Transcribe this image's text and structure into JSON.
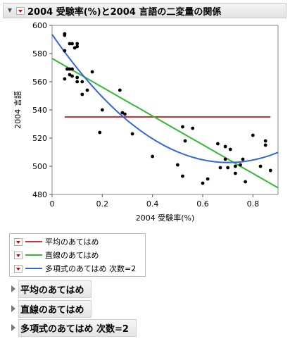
{
  "window": {
    "title": "2004 受験率(%)と2004 言語の二変量の関係"
  },
  "legend": {
    "items": [
      {
        "label": "平均のあてはめ",
        "color": "#cc3333"
      },
      {
        "label": "直線のあてはめ",
        "color": "#33bb33"
      },
      {
        "label": "多項式のあてはめ 次数=2",
        "color": "#3366dd"
      }
    ]
  },
  "reports": [
    {
      "label": "平均のあてはめ"
    },
    {
      "label": "直線のあてはめ"
    },
    {
      "label": "多項式のあてはめ 次数=2"
    }
  ],
  "chart_data": {
    "type": "scatter",
    "xlabel": "2004 受験率(%)",
    "ylabel": "2004 言語",
    "xlim": [
      0,
      0.9
    ],
    "ylim": [
      480,
      600
    ],
    "xticks": [
      0,
      0.2,
      0.4,
      0.6,
      0.8
    ],
    "xtick_labels": [
      "0",
      "0.2",
      "0.4",
      "0.6",
      "0.8"
    ],
    "yticks": [
      480,
      500,
      520,
      540,
      560,
      580,
      600
    ],
    "ytick_labels": [
      "480",
      "500",
      "520",
      "540",
      "560",
      "580",
      "600"
    ],
    "grid": false,
    "points": [
      [
        0.05,
        594
      ],
      [
        0.05,
        593
      ],
      [
        0.05,
        582
      ],
      [
        0.06,
        569
      ],
      [
        0.05,
        562
      ],
      [
        0.07,
        569
      ],
      [
        0.07,
        565
      ],
      [
        0.07,
        587
      ],
      [
        0.08,
        587
      ],
      [
        0.08,
        569
      ],
      [
        0.08,
        564
      ],
      [
        0.09,
        584
      ],
      [
        0.1,
        587
      ],
      [
        0.1,
        585
      ],
      [
        0.1,
        563
      ],
      [
        0.1,
        560
      ],
      [
        0.12,
        560
      ],
      [
        0.12,
        551
      ],
      [
        0.14,
        554
      ],
      [
        0.16,
        567
      ],
      [
        0.19,
        524
      ],
      [
        0.2,
        540
      ],
      [
        0.27,
        554
      ],
      [
        0.28,
        538
      ],
      [
        0.29,
        537
      ],
      [
        0.32,
        523
      ],
      [
        0.4,
        507
      ],
      [
        0.5,
        501
      ],
      [
        0.52,
        528
      ],
      [
        0.53,
        518
      ],
      [
        0.52,
        493
      ],
      [
        0.56,
        527
      ],
      [
        0.6,
        488
      ],
      [
        0.62,
        491
      ],
      [
        0.66,
        516
      ],
      [
        0.67,
        499
      ],
      [
        0.69,
        514
      ],
      [
        0.69,
        505
      ],
      [
        0.7,
        499
      ],
      [
        0.71,
        512
      ],
      [
        0.73,
        500
      ],
      [
        0.73,
        495
      ],
      [
        0.75,
        501
      ],
      [
        0.76,
        505
      ],
      [
        0.77,
        489
      ],
      [
        0.8,
        522
      ],
      [
        0.83,
        500
      ],
      [
        0.85,
        518
      ],
      [
        0.85,
        515
      ],
      [
        0.87,
        497
      ]
    ],
    "series": [
      {
        "name": "平均のあてはめ",
        "color": "#cc3333",
        "fit": "mean",
        "x_range": [
          0.05,
          0.87
        ],
        "coefficients": [
          535
        ]
      },
      {
        "name": "直線のあてはめ",
        "color": "#33bb33",
        "fit": "linear",
        "x_range": [
          0,
          0.9
        ],
        "coefficients": [
          576.5,
          -102
        ]
      },
      {
        "name": "多項式のあてはめ 次数=2",
        "color": "#3366dd",
        "fit": "quadratic",
        "x_range": [
          0,
          0.9
        ],
        "coefficients": [
          593.6,
          -258.9,
          184.3
        ]
      }
    ]
  }
}
